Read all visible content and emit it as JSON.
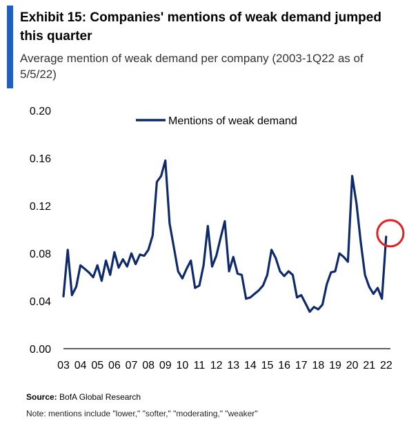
{
  "title": "Exhibit 15: Companies' mentions of weak demand jumped this quarter",
  "subtitle": "Average mention of weak demand per company (2003-1Q22 as of 5/5/22)",
  "source_label": "Source:",
  "source_text": " BofA Global Research",
  "note": "Note: mentions include \"lower,\" \"softer,\" \"moderating,\" \"weaker\"",
  "colors": {
    "accent": "#1f5fbf",
    "line": "#0f2a6b",
    "highlight": "#e02020",
    "axis": "#000000"
  },
  "chart_data": {
    "type": "line",
    "x_tick_labels": [
      "03",
      "04",
      "05",
      "06",
      "07",
      "08",
      "09",
      "10",
      "11",
      "12",
      "13",
      "14",
      "15",
      "16",
      "17",
      "18",
      "19",
      "20",
      "21",
      "22"
    ],
    "y_tick_labels": [
      "0.00",
      "0.04",
      "0.08",
      "0.12",
      "0.16",
      "0.20"
    ],
    "ylim": [
      0,
      0.2
    ],
    "xlim": [
      2003,
      2022.25
    ],
    "legend": {
      "label": "Mentions of weak demand",
      "position": "top"
    },
    "highlight": {
      "type": "circle",
      "x": 2022.0,
      "y": 0.094,
      "color": "#e02020"
    },
    "series": [
      {
        "name": "Mentions of weak demand",
        "x": [
          2003.0,
          2003.25,
          2003.5,
          2003.75,
          2004.0,
          2004.25,
          2004.5,
          2004.75,
          2005.0,
          2005.25,
          2005.5,
          2005.75,
          2006.0,
          2006.25,
          2006.5,
          2006.75,
          2007.0,
          2007.25,
          2007.5,
          2007.75,
          2008.0,
          2008.25,
          2008.5,
          2008.75,
          2009.0,
          2009.25,
          2009.5,
          2009.75,
          2010.0,
          2010.25,
          2010.5,
          2010.75,
          2011.0,
          2011.25,
          2011.5,
          2011.75,
          2012.0,
          2012.25,
          2012.5,
          2012.75,
          2013.0,
          2013.25,
          2013.5,
          2013.75,
          2014.0,
          2014.25,
          2014.5,
          2014.75,
          2015.0,
          2015.25,
          2015.5,
          2015.75,
          2016.0,
          2016.25,
          2016.5,
          2016.75,
          2017.0,
          2017.25,
          2017.5,
          2017.75,
          2018.0,
          2018.25,
          2018.5,
          2018.75,
          2019.0,
          2019.25,
          2019.5,
          2019.75,
          2020.0,
          2020.25,
          2020.5,
          2020.75,
          2021.0,
          2021.25,
          2021.5,
          2021.75,
          2022.0
        ],
        "values": [
          0.044,
          0.083,
          0.045,
          0.052,
          0.07,
          0.067,
          0.064,
          0.06,
          0.07,
          0.057,
          0.074,
          0.062,
          0.081,
          0.068,
          0.075,
          0.069,
          0.08,
          0.071,
          0.079,
          0.078,
          0.083,
          0.095,
          0.14,
          0.145,
          0.158,
          0.105,
          0.085,
          0.065,
          0.059,
          0.067,
          0.074,
          0.051,
          0.053,
          0.07,
          0.103,
          0.069,
          0.078,
          0.093,
          0.107,
          0.065,
          0.077,
          0.063,
          0.062,
          0.042,
          0.043,
          0.046,
          0.049,
          0.053,
          0.062,
          0.083,
          0.076,
          0.065,
          0.061,
          0.065,
          0.062,
          0.043,
          0.045,
          0.038,
          0.031,
          0.035,
          0.033,
          0.037,
          0.054,
          0.064,
          0.065,
          0.08,
          0.077,
          0.073,
          0.145,
          0.122,
          0.09,
          0.062,
          0.052,
          0.046,
          0.051,
          0.042,
          0.094
        ]
      }
    ]
  }
}
